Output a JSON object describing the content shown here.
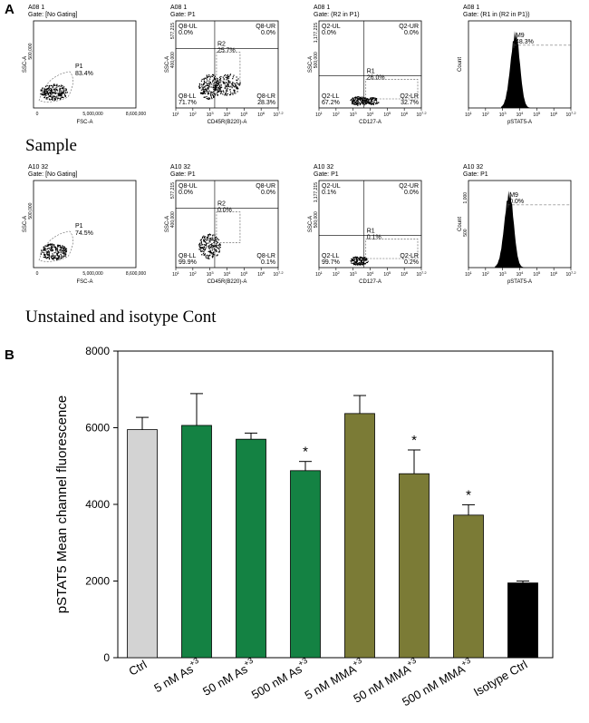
{
  "panel_a_label": "A",
  "panel_b_label": "B",
  "rows": [
    {
      "label": "Sample",
      "plots": [
        {
          "sample": "A08 1",
          "gate": "Gate: [No Gating]",
          "xlabel": "FSC-A",
          "ylabel": "SSC-A",
          "xticks": [
            "0",
            "5,000,000",
            "8,600,000"
          ],
          "yticks": [
            "500,000"
          ],
          "gates": [
            {
              "name": "P1",
              "pct": "83.4%"
            }
          ]
        },
        {
          "sample": "A08 1",
          "gate": "Gate: P1",
          "xlabel": "CD45R(B220)-A",
          "ylabel": "SSC-A",
          "ytop": "577,215",
          "yticks": [
            "400,000"
          ],
          "gates": [
            {
              "name": "Q8-UL",
              "pct": "0.0%"
            },
            {
              "name": "Q8-UR",
              "pct": "0.0%"
            },
            {
              "name": "R2",
              "pct": "25.7%"
            },
            {
              "name": "Q8-LL",
              "pct": "71.7%"
            },
            {
              "name": "Q8-LR",
              "pct": "28.3%"
            }
          ]
        },
        {
          "sample": "A08 1",
          "gate": "Gate: (R2 in P1)",
          "xlabel": "CD127-A",
          "ylabel": "SSC-A",
          "ytop": "1,177,215",
          "yticks": [
            "500,000"
          ],
          "gates": [
            {
              "name": "Q2-UL",
              "pct": "0.0%"
            },
            {
              "name": "Q2-UR",
              "pct": "0.0%"
            },
            {
              "name": "R1",
              "pct": "26.0%"
            },
            {
              "name": "Q2-LL",
              "pct": "67.2%"
            },
            {
              "name": "Q2-LR",
              "pct": "32.7%"
            }
          ]
        },
        {
          "sample": "A08 1",
          "gate": "Gate: (R1 in (R2 in P1))",
          "xlabel": "pSTAT5-A",
          "ylabel": "Count",
          "gates": [
            {
              "name": "M9",
              "pct": "48.3%"
            }
          ]
        }
      ]
    },
    {
      "label": "Unstained and isotype Cont",
      "plots": [
        {
          "sample": "A10 32",
          "gate": "Gate: [No Gating]",
          "xlabel": "FSC-A",
          "ylabel": "SSC-A",
          "xticks": [
            "0",
            "5,000,000",
            "8,600,000"
          ],
          "yticks": [
            "500,000"
          ],
          "gates": [
            {
              "name": "P1",
              "pct": "74.5%"
            }
          ]
        },
        {
          "sample": "A10 32",
          "gate": "Gate: P1",
          "xlabel": "CD45R(B220)-A",
          "ylabel": "SSC-A",
          "ytop": "577,215",
          "yticks": [
            "400,000"
          ],
          "gates": [
            {
              "name": "Q8-UL",
              "pct": "0.0%"
            },
            {
              "name": "Q8-UR",
              "pct": "0.0%"
            },
            {
              "name": "R2",
              "pct": "0.0%"
            },
            {
              "name": "Q8-LL",
              "pct": "99.9%"
            },
            {
              "name": "Q8-LR",
              "pct": "0.1%"
            }
          ]
        },
        {
          "sample": "A10 32",
          "gate": "Gate: P1",
          "xlabel": "CD127-A",
          "ylabel": "SSC-A",
          "ytop": "1,177,215",
          "yticks": [
            "500,000"
          ],
          "gates": [
            {
              "name": "Q2-UL",
              "pct": "0.1%"
            },
            {
              "name": "Q2-UR",
              "pct": "0.0%"
            },
            {
              "name": "R1",
              "pct": "0.1%"
            },
            {
              "name": "Q2-LL",
              "pct": "99.7%"
            },
            {
              "name": "Q2-LR",
              "pct": "0.2%"
            }
          ]
        },
        {
          "sample": "A10 32",
          "gate": "Gate: P1",
          "xlabel": "pSTAT5-A",
          "ylabel": "Count",
          "yticks": [
            "500",
            "1,000"
          ],
          "gates": [
            {
              "name": "M9",
              "pct": "0.0%"
            }
          ]
        }
      ]
    }
  ],
  "log_ticks": [
    "10^1",
    "10^2",
    "10^3",
    "10^4",
    "10^5",
    "10^6",
    "10^7.2"
  ],
  "chart_data": {
    "type": "bar",
    "ylabel": "pSTAT5 Mean channel fluorescence",
    "xlabel": "",
    "ylim": [
      0,
      8000
    ],
    "yticks": [
      0,
      2000,
      4000,
      6000,
      8000
    ],
    "categories": [
      {
        "label": "Ctrl",
        "sup": ""
      },
      {
        "label": "5 nM As",
        "sup": "+3"
      },
      {
        "label": "50 nM As",
        "sup": "+3"
      },
      {
        "label": "500 nM As",
        "sup": "+3"
      },
      {
        "label": "5 nM MMA",
        "sup": "+3"
      },
      {
        "label": "50 nM MMA",
        "sup": "+3"
      },
      {
        "label": "500 nM MMA",
        "sup": "+3"
      },
      {
        "label": "Isotype Ctrl",
        "sup": ""
      }
    ],
    "values": [
      5950,
      6060,
      5700,
      4880,
      6370,
      4800,
      3720,
      1950
    ],
    "errors": [
      320,
      830,
      160,
      240,
      470,
      620,
      270,
      50
    ],
    "significance": [
      "",
      "",
      "",
      "*",
      "",
      "*",
      "*",
      ""
    ],
    "colors": [
      "#d3d3d3",
      "#148243",
      "#148243",
      "#148243",
      "#7b7b36",
      "#7b7b36",
      "#7b7b36",
      "#000000"
    ]
  }
}
